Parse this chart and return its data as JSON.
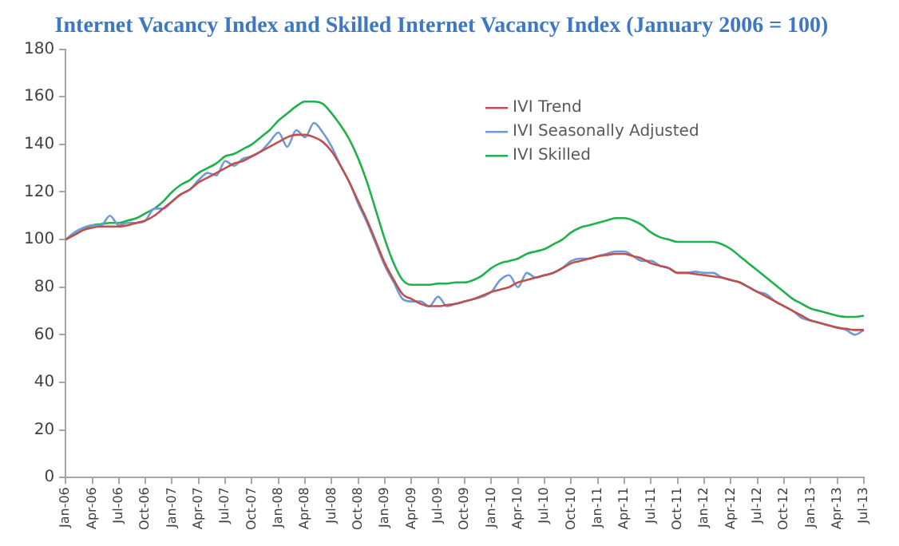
{
  "chart_data": {
    "type": "line",
    "title": "Internet Vacancy Index and Skilled Internet Vacancy Index (January 2006 = 100)",
    "categories": [
      "Jan-06",
      null,
      null,
      "Apr-06",
      null,
      null,
      "Jul-06",
      null,
      null,
      "Oct-06",
      null,
      null,
      "Jan-07",
      null,
      null,
      "Apr-07",
      null,
      null,
      "Jul-07",
      null,
      null,
      "Oct-07",
      null,
      null,
      "Jan-08",
      null,
      null,
      "Apr-08",
      null,
      null,
      "Jul-08",
      null,
      null,
      "Oct-08",
      null,
      null,
      "Jan-09",
      null,
      null,
      "Apr-09",
      null,
      null,
      "Jul-09",
      null,
      null,
      "Oct-09",
      null,
      null,
      "Jan-10",
      null,
      null,
      "Apr-10",
      null,
      null,
      "Jul-10",
      null,
      null,
      "Oct-10",
      null,
      null,
      "Jan-11",
      null,
      null,
      "Apr-11",
      null,
      null,
      "Jul-11",
      null,
      null,
      "Oct-11",
      null,
      null,
      "Jan-12",
      null,
      null,
      "Apr-12",
      null,
      null,
      "Jul-12",
      null,
      null,
      "Oct-12",
      null,
      null,
      "Jan-13",
      null,
      null,
      "Apr-13",
      null,
      null,
      "Jul-13"
    ],
    "series": [
      {
        "name": "IVI Trend",
        "color": "#c0504d",
        "values": [
          100,
          102,
          104,
          105,
          105.5,
          105.5,
          105.5,
          106,
          107,
          108,
          110,
          113,
          116,
          119,
          121,
          124,
          126,
          128,
          130,
          132,
          133,
          135,
          137,
          139,
          141,
          143,
          144,
          144,
          143,
          141,
          137,
          131,
          124,
          116,
          108,
          99,
          90,
          83,
          77,
          75,
          73,
          72,
          72,
          72.5,
          73,
          74,
          75,
          76.5,
          78,
          79,
          80,
          82,
          83,
          84,
          85,
          86,
          88,
          90,
          91,
          92,
          93,
          93.5,
          94,
          94,
          93,
          92,
          90,
          89,
          88,
          86,
          86,
          85.5,
          85,
          84.5,
          84,
          83,
          82,
          80,
          78,
          76,
          74,
          72,
          70,
          68,
          66,
          65,
          64,
          63,
          62.5,
          62,
          62
        ]
      },
      {
        "name": "IVI Seasonally Adjusted",
        "color": "#6f9ad8",
        "values": [
          100,
          103,
          105,
          106,
          106,
          110,
          106,
          107,
          107,
          108,
          113,
          113,
          116,
          119,
          121,
          125,
          128,
          127,
          133,
          131,
          134,
          135,
          137,
          141,
          145,
          139,
          146,
          143,
          149,
          145,
          139,
          131,
          124,
          115,
          107,
          98,
          89,
          82,
          75,
          74,
          74,
          72,
          76,
          72,
          73,
          74,
          75,
          76,
          78,
          83,
          85,
          80,
          86,
          84,
          85,
          86,
          88,
          91,
          92,
          92,
          93,
          94,
          95,
          95,
          93,
          91,
          91,
          89,
          88,
          86,
          86,
          86.5,
          86,
          86,
          84,
          83,
          82,
          80,
          78,
          77,
          74,
          72,
          70,
          67,
          66,
          65,
          64,
          63,
          62,
          60,
          62
        ]
      },
      {
        "name": "IVI Skilled",
        "color": "#1fb24a",
        "values": [
          100,
          102,
          104,
          106,
          106.5,
          107,
          107,
          108,
          109,
          111,
          113,
          116,
          120,
          123,
          125,
          128,
          130,
          132,
          135,
          136,
          138,
          140,
          143,
          146,
          150,
          153,
          156,
          158,
          158,
          157,
          153,
          148,
          142,
          134,
          124,
          112,
          100,
          90,
          83,
          81,
          81,
          81,
          81.5,
          81.5,
          82,
          82,
          83,
          85,
          88,
          90,
          91,
          92,
          94,
          95,
          96,
          98,
          100,
          103,
          105,
          106,
          107,
          108,
          109,
          109,
          108,
          106,
          103,
          101,
          100,
          99,
          99,
          99,
          99,
          99,
          98,
          96,
          93,
          90,
          87,
          84,
          81,
          78,
          75,
          73,
          71,
          70,
          69,
          68,
          67.5,
          67.5,
          68
        ]
      }
    ],
    "ylim": [
      0,
      180
    ],
    "yticks": [
      0,
      20,
      40,
      60,
      80,
      100,
      120,
      140,
      160,
      180
    ],
    "grid": false,
    "legend": "top right",
    "marker": "none",
    "line_style": "solid"
  }
}
